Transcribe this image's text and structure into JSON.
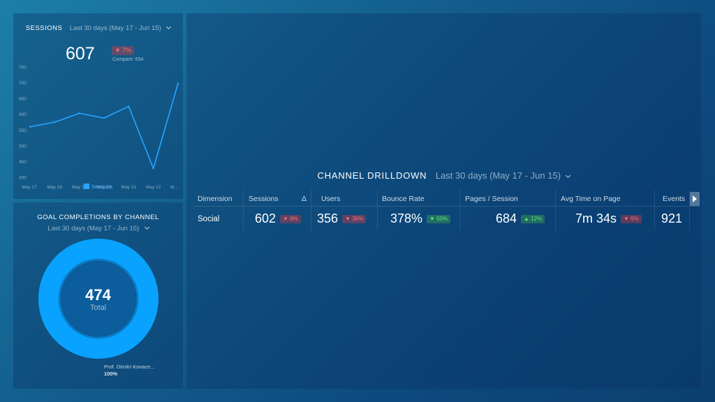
{
  "sessions_widget": {
    "title": "SESSIONS",
    "date_range": "Last 30 days (May 17 - Jun 15)",
    "value": "607",
    "change": "▼ 7%",
    "compare": "Compare: 654",
    "legend": "Sessions",
    "colors": {
      "line": "#2aa4ff",
      "negative": "#ff6b6b"
    }
  },
  "chart_data": {
    "type": "line",
    "x": [
      "May 17",
      "May 18",
      "May 19",
      "May 20",
      "May 21",
      "May 22",
      "M..."
    ],
    "series": [
      {
        "name": "Sessions",
        "values": [
          560,
          575,
          603,
          588,
          625,
          428,
          698
        ]
      }
    ],
    "y_ticks": [
      "750",
      "700",
      "650",
      "600",
      "550",
      "500",
      "450",
      "400"
    ],
    "ylim": [
      400,
      750
    ],
    "grid": false,
    "legend_position": "bottom"
  },
  "goals_widget": {
    "title": "GOAL COMPLETIONS BY CHANNEL",
    "date_range": "Last 30 days (May 17 - Jun 15)",
    "total_value": "474",
    "total_label": "Total",
    "legend_name": "Prof. Dimitri Kovace...",
    "legend_pct": "100%",
    "colors": {
      "ring": "#0aa2ff",
      "inner": "#0b5d9c"
    }
  },
  "drilldown": {
    "title": "CHANNEL DRILLDOWN",
    "date_range": "Last 30 days (May 17 - Jun 15)",
    "headers": {
      "dimension": "Dimension",
      "sessions": "Sessions",
      "sort_icon": "Δ",
      "users": "Users",
      "bounce_rate": "Bounce Rate",
      "pages_session": "Pages / Session",
      "avg_time": "Avg Time on Page",
      "events": "Events"
    },
    "row": {
      "dimension": "Social",
      "sessions": "602",
      "sessions_change": "▼ 8%",
      "users": "356",
      "users_change": "▼ 36%",
      "bounce_rate": "378%",
      "bounce_change": "▼ 50%",
      "pages_session": "684",
      "pages_change": "▲ 12%",
      "avg_time": "7m 34s",
      "avg_time_change": "▼ 6%",
      "events": "921"
    }
  }
}
